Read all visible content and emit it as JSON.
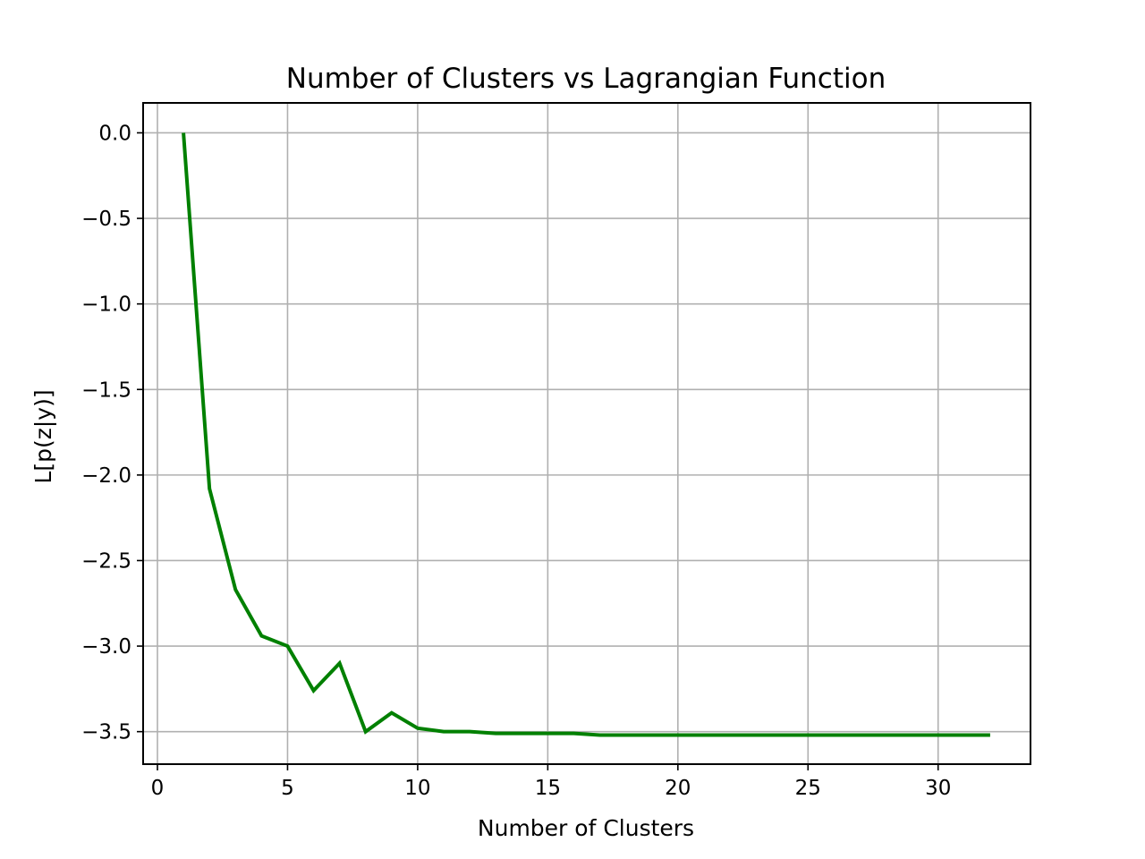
{
  "chart_data": {
    "type": "line",
    "title": "Number of Clusters vs Lagrangian Function",
    "xlabel": "Number of Clusters",
    "ylabel": "L[p(z|y)]",
    "xlim": [
      -0.55,
      33.55
    ],
    "ylim": [
      -3.69,
      0.175
    ],
    "xticks": [
      0,
      5,
      10,
      15,
      20,
      25,
      30
    ],
    "xtick_labels": [
      "0",
      "5",
      "10",
      "15",
      "20",
      "25",
      "30"
    ],
    "yticks": [
      0.0,
      -0.5,
      -1.0,
      -1.5,
      -2.0,
      -2.5,
      -3.0,
      -3.5
    ],
    "ytick_labels": [
      "0.0",
      "−0.5",
      "−1.0",
      "−1.5",
      "−2.0",
      "−2.5",
      "−3.0",
      "−3.5"
    ],
    "grid": true,
    "legend": "none",
    "series": [
      {
        "color": "#008000",
        "x": [
          1,
          2,
          3,
          4,
          5,
          6,
          7,
          8,
          9,
          10,
          11,
          12,
          13,
          14,
          15,
          16,
          17,
          18,
          19,
          20,
          21,
          22,
          23,
          24,
          25,
          26,
          27,
          28,
          29,
          30,
          31,
          32
        ],
        "y": [
          0.0,
          -2.08,
          -2.67,
          -2.94,
          -3.0,
          -3.26,
          -3.1,
          -3.5,
          -3.39,
          -3.48,
          -3.5,
          -3.5,
          -3.51,
          -3.51,
          -3.51,
          -3.51,
          -3.52,
          -3.52,
          -3.52,
          -3.52,
          -3.52,
          -3.52,
          -3.52,
          -3.52,
          -3.52,
          -3.52,
          -3.52,
          -3.52,
          -3.52,
          -3.52,
          -3.52,
          -3.52
        ]
      }
    ]
  }
}
